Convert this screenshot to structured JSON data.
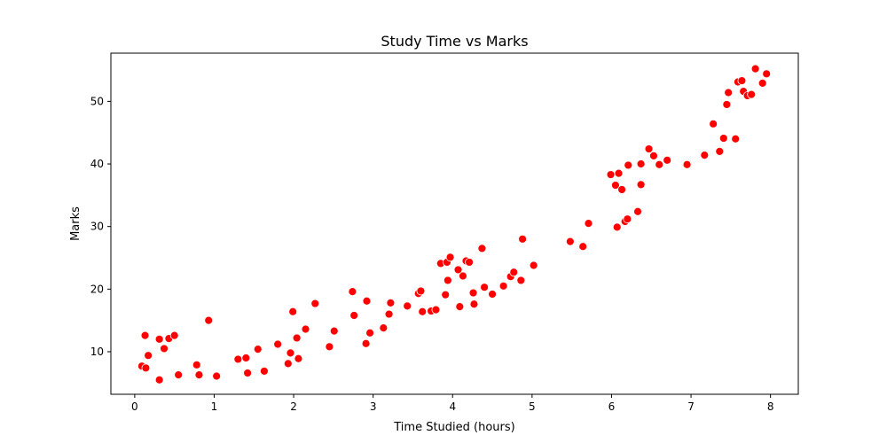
{
  "chart_data": {
    "type": "scatter",
    "title": "Study Time vs Marks",
    "xlabel": "Time Studied (hours)",
    "ylabel": "Marks",
    "xlim": [
      -0.3,
      8.35
    ],
    "ylim": [
      3.2,
      57.7
    ],
    "xticks": [
      0,
      1,
      2,
      3,
      4,
      5,
      6,
      7,
      8
    ],
    "yticks": [
      10,
      20,
      30,
      40,
      50
    ],
    "grid": false,
    "legend": "none",
    "marker_color": "#ff0000",
    "marker_edge_color": "#ffffff",
    "points": [
      {
        "x": 0.09,
        "y": 7.7
      },
      {
        "x": 0.13,
        "y": 12.6
      },
      {
        "x": 0.14,
        "y": 7.4
      },
      {
        "x": 0.17,
        "y": 9.4
      },
      {
        "x": 0.31,
        "y": 5.5
      },
      {
        "x": 0.31,
        "y": 12.0
      },
      {
        "x": 0.37,
        "y": 10.5
      },
      {
        "x": 0.43,
        "y": 12.1
      },
      {
        "x": 0.5,
        "y": 12.6
      },
      {
        "x": 0.55,
        "y": 6.3
      },
      {
        "x": 0.78,
        "y": 7.9
      },
      {
        "x": 0.81,
        "y": 6.3
      },
      {
        "x": 0.93,
        "y": 15.0
      },
      {
        "x": 1.03,
        "y": 6.1
      },
      {
        "x": 1.3,
        "y": 8.8
      },
      {
        "x": 1.4,
        "y": 9.0
      },
      {
        "x": 1.42,
        "y": 6.6
      },
      {
        "x": 1.55,
        "y": 10.4
      },
      {
        "x": 1.63,
        "y": 6.9
      },
      {
        "x": 1.8,
        "y": 11.2
      },
      {
        "x": 1.93,
        "y": 8.1
      },
      {
        "x": 1.96,
        "y": 9.8
      },
      {
        "x": 1.99,
        "y": 16.4
      },
      {
        "x": 2.04,
        "y": 12.2
      },
      {
        "x": 2.06,
        "y": 8.9
      },
      {
        "x": 2.15,
        "y": 13.6
      },
      {
        "x": 2.27,
        "y": 17.7
      },
      {
        "x": 2.45,
        "y": 10.8
      },
      {
        "x": 2.51,
        "y": 13.3
      },
      {
        "x": 2.74,
        "y": 19.6
      },
      {
        "x": 2.76,
        "y": 15.8
      },
      {
        "x": 2.91,
        "y": 11.3
      },
      {
        "x": 2.92,
        "y": 18.1
      },
      {
        "x": 2.96,
        "y": 13.0
      },
      {
        "x": 3.13,
        "y": 13.8
      },
      {
        "x": 3.2,
        "y": 16.0
      },
      {
        "x": 3.22,
        "y": 17.8
      },
      {
        "x": 3.43,
        "y": 17.3
      },
      {
        "x": 3.57,
        "y": 19.3
      },
      {
        "x": 3.6,
        "y": 19.7
      },
      {
        "x": 3.62,
        "y": 16.4
      },
      {
        "x": 3.73,
        "y": 16.5
      },
      {
        "x": 3.79,
        "y": 16.7
      },
      {
        "x": 3.85,
        "y": 24.1
      },
      {
        "x": 3.91,
        "y": 19.1
      },
      {
        "x": 3.93,
        "y": 24.3
      },
      {
        "x": 3.94,
        "y": 21.4
      },
      {
        "x": 3.97,
        "y": 25.1
      },
      {
        "x": 4.07,
        "y": 23.1
      },
      {
        "x": 4.09,
        "y": 17.2
      },
      {
        "x": 4.13,
        "y": 22.1
      },
      {
        "x": 4.17,
        "y": 24.5
      },
      {
        "x": 4.21,
        "y": 24.3
      },
      {
        "x": 4.26,
        "y": 19.4
      },
      {
        "x": 4.27,
        "y": 17.6
      },
      {
        "x": 4.37,
        "y": 26.5
      },
      {
        "x": 4.4,
        "y": 20.3
      },
      {
        "x": 4.5,
        "y": 19.2
      },
      {
        "x": 4.64,
        "y": 20.5
      },
      {
        "x": 4.73,
        "y": 22.0
      },
      {
        "x": 4.77,
        "y": 22.7
      },
      {
        "x": 4.86,
        "y": 21.4
      },
      {
        "x": 4.88,
        "y": 28.0
      },
      {
        "x": 5.02,
        "y": 23.8
      },
      {
        "x": 5.48,
        "y": 27.6
      },
      {
        "x": 5.64,
        "y": 26.8
      },
      {
        "x": 5.71,
        "y": 30.5
      },
      {
        "x": 5.99,
        "y": 38.3
      },
      {
        "x": 6.05,
        "y": 36.6
      },
      {
        "x": 6.07,
        "y": 29.9
      },
      {
        "x": 6.09,
        "y": 38.5
      },
      {
        "x": 6.13,
        "y": 35.9
      },
      {
        "x": 6.17,
        "y": 30.8
      },
      {
        "x": 6.2,
        "y": 31.2
      },
      {
        "x": 6.21,
        "y": 39.8
      },
      {
        "x": 6.33,
        "y": 32.4
      },
      {
        "x": 6.37,
        "y": 40.0
      },
      {
        "x": 6.37,
        "y": 36.7
      },
      {
        "x": 6.47,
        "y": 42.4
      },
      {
        "x": 6.53,
        "y": 41.3
      },
      {
        "x": 6.6,
        "y": 39.9
      },
      {
        "x": 6.7,
        "y": 40.6
      },
      {
        "x": 6.95,
        "y": 39.9
      },
      {
        "x": 7.17,
        "y": 41.4
      },
      {
        "x": 7.28,
        "y": 46.4
      },
      {
        "x": 7.36,
        "y": 42.0
      },
      {
        "x": 7.41,
        "y": 44.1
      },
      {
        "x": 7.45,
        "y": 49.5
      },
      {
        "x": 7.47,
        "y": 51.4
      },
      {
        "x": 7.56,
        "y": 44.0
      },
      {
        "x": 7.59,
        "y": 53.1
      },
      {
        "x": 7.64,
        "y": 53.3
      },
      {
        "x": 7.66,
        "y": 51.6
      },
      {
        "x": 7.71,
        "y": 50.9
      },
      {
        "x": 7.76,
        "y": 51.1
      },
      {
        "x": 7.81,
        "y": 55.2
      },
      {
        "x": 7.9,
        "y": 52.9
      },
      {
        "x": 7.95,
        "y": 54.4
      }
    ]
  }
}
